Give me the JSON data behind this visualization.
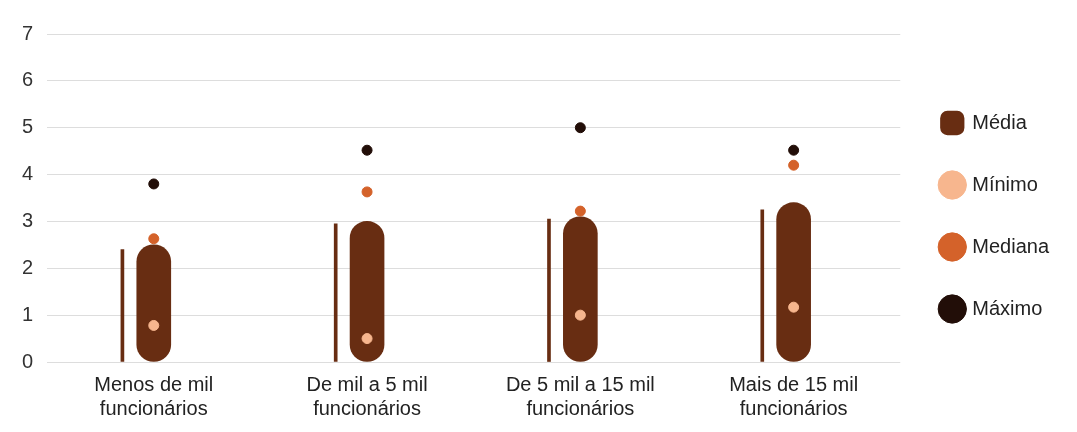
{
  "chart_data": {
    "type": "bar",
    "categories": [
      "Menos de mil funcionários",
      "De mil a 5 mil funcionários",
      "De 5 mil a 15 mil funcionários",
      "Mais de 15 mil funcionários"
    ],
    "series": [
      {
        "color": "#682d12",
        "values": [
          2.4,
          2.95,
          3.05,
          3.25
        ]
      },
      {
        "name": "Média",
        "color": "#682d12",
        "values": [
          2.5,
          3.0,
          3.1,
          3.4
        ]
      },
      {
        "type": "scatter",
        "name": "Mínimo",
        "color": "#f7b68e",
        "values": [
          0.78,
          0.5,
          1.0,
          1.17
        ]
      },
      {
        "type": "scatter",
        "name": "Mediana",
        "color": "#d4622a",
        "values": [
          2.63,
          3.63,
          3.22,
          4.2
        ]
      },
      {
        "type": "scatter",
        "name": "Máximo",
        "color": "#220e08",
        "values": [
          3.8,
          4.52,
          5.0,
          4.52
        ]
      }
    ],
    "ylim": [
      0,
      7
    ],
    "yticks": [
      0,
      1,
      2,
      3,
      4,
      5,
      6,
      7
    ],
    "grid": "y",
    "legend": "right",
    "marker": "circle"
  }
}
